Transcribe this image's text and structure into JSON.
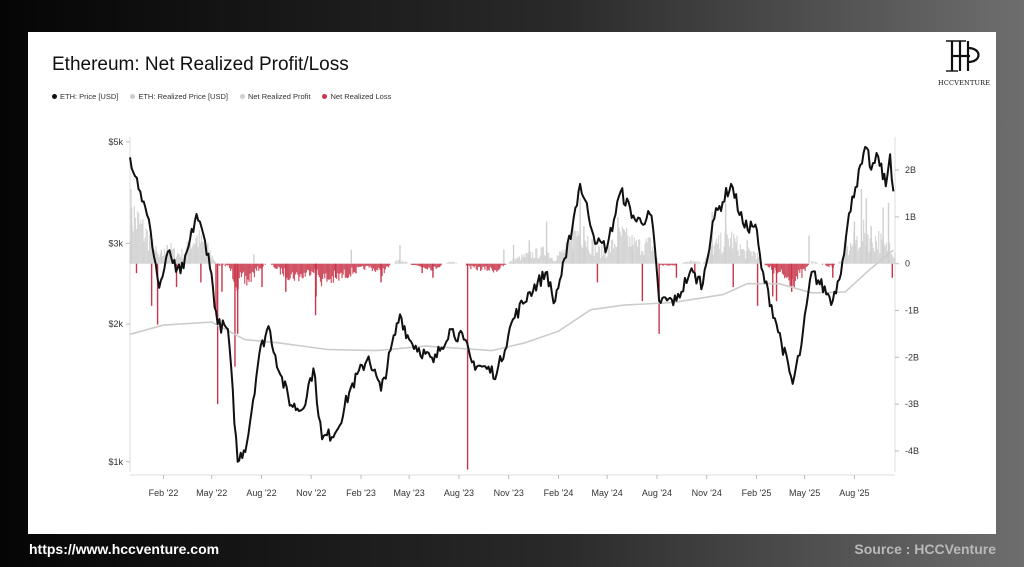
{
  "footer": {
    "url": "https://www.hccventure.com",
    "source": "Source : HCCVenture"
  },
  "logo": {
    "text": "HCCVENTURE",
    "icon": "hp-monogram-icon"
  },
  "chart_data": {
    "type": "line+bar",
    "title": "Ethereum: Net Realized Profit/Loss",
    "legend": [
      {
        "name": "ETH: Price [USD]",
        "color": "#111111"
      },
      {
        "name": "ETH: Realized Price [USD]",
        "color": "#cccccc"
      },
      {
        "name": "Net Realized Profit",
        "color": "#cfcfcf"
      },
      {
        "name": "Net Realized Loss",
        "color": "#c8364a"
      }
    ],
    "legend_position": "top-left",
    "grid": false,
    "x_range": [
      "2021-12-01",
      "2025-10-15"
    ],
    "x_ticks": [
      {
        "label": "Feb '22",
        "date": "2022-02-01"
      },
      {
        "label": "May '22",
        "date": "2022-05-01"
      },
      {
        "label": "Aug '22",
        "date": "2022-08-01"
      },
      {
        "label": "Nov '22",
        "date": "2022-11-01"
      },
      {
        "label": "Feb '23",
        "date": "2023-02-01"
      },
      {
        "label": "May '23",
        "date": "2023-05-01"
      },
      {
        "label": "Aug '23",
        "date": "2023-08-01"
      },
      {
        "label": "Nov '23",
        "date": "2023-11-01"
      },
      {
        "label": "Feb '24",
        "date": "2024-02-01"
      },
      {
        "label": "May '24",
        "date": "2024-05-01"
      },
      {
        "label": "Aug '24",
        "date": "2024-08-01"
      },
      {
        "label": "Nov '24",
        "date": "2024-11-01"
      },
      {
        "label": "Feb '25",
        "date": "2025-02-01"
      },
      {
        "label": "May '25",
        "date": "2025-05-01"
      },
      {
        "label": "Aug '25",
        "date": "2025-08-01"
      }
    ],
    "y_left": {
      "scale": "log",
      "range": [
        950,
        5000
      ],
      "ticks": [
        {
          "label": "$1k",
          "value": 1000
        },
        {
          "label": "$2k",
          "value": 2000
        },
        {
          "label": "$3k",
          "value": 3000
        },
        {
          "label": "$5k",
          "value": 5000
        }
      ]
    },
    "y_right": {
      "scale": "linear",
      "range_billions": [
        -4.45,
        2.6
      ],
      "ticks": [
        {
          "label": "2B",
          "value": 2
        },
        {
          "label": "1B",
          "value": 1
        },
        {
          "label": "0",
          "value": 0
        },
        {
          "label": "-1B",
          "value": -1
        },
        {
          "label": "-2B",
          "value": -2
        },
        {
          "label": "-3B",
          "value": -3
        },
        {
          "label": "-4B",
          "value": -4
        }
      ]
    },
    "price_series": {
      "name": "ETH: Price [USD]",
      "points": [
        [
          "2021-12-01",
          4630
        ],
        [
          "2021-12-20",
          3900
        ],
        [
          "2022-01-08",
          3200
        ],
        [
          "2022-01-24",
          2400
        ],
        [
          "2022-02-12",
          2900
        ],
        [
          "2022-02-24",
          2600
        ],
        [
          "2022-03-10",
          2650
        ],
        [
          "2022-04-03",
          3480
        ],
        [
          "2022-04-25",
          2850
        ],
        [
          "2022-05-12",
          2000
        ],
        [
          "2022-05-31",
          1950
        ],
        [
          "2022-06-18",
          1000
        ],
        [
          "2022-07-05",
          1100
        ],
        [
          "2022-07-28",
          1720
        ],
        [
          "2022-08-14",
          1980
        ],
        [
          "2022-09-05",
          1550
        ],
        [
          "2022-09-25",
          1330
        ],
        [
          "2022-10-15",
          1300
        ],
        [
          "2022-11-05",
          1600
        ],
        [
          "2022-11-21",
          1120
        ],
        [
          "2022-12-18",
          1170
        ],
        [
          "2023-01-13",
          1450
        ],
        [
          "2023-02-15",
          1700
        ],
        [
          "2023-03-10",
          1430
        ],
        [
          "2023-04-14",
          2100
        ],
        [
          "2023-05-01",
          1850
        ],
        [
          "2023-06-15",
          1650
        ],
        [
          "2023-07-15",
          1950
        ],
        [
          "2023-08-10",
          1850
        ],
        [
          "2023-08-25",
          1650
        ],
        [
          "2023-10-10",
          1560
        ],
        [
          "2023-11-09",
          2050
        ],
        [
          "2023-12-10",
          2350
        ],
        [
          "2024-01-11",
          2600
        ],
        [
          "2024-01-23",
          2220
        ],
        [
          "2024-02-15",
          2800
        ],
        [
          "2024-03-12",
          4050
        ],
        [
          "2024-04-12",
          3000
        ],
        [
          "2024-05-01",
          2950
        ],
        [
          "2024-05-26",
          3900
        ],
        [
          "2024-06-24",
          3350
        ],
        [
          "2024-07-22",
          3450
        ],
        [
          "2024-08-05",
          2250
        ],
        [
          "2024-09-06",
          2250
        ],
        [
          "2024-10-01",
          2600
        ],
        [
          "2024-10-25",
          2450
        ],
        [
          "2024-11-12",
          3350
        ],
        [
          "2024-12-16",
          4050
        ],
        [
          "2025-01-10",
          3250
        ],
        [
          "2025-01-30",
          3300
        ],
        [
          "2025-02-10",
          2650
        ],
        [
          "2025-03-10",
          2000
        ],
        [
          "2025-04-09",
          1480
        ],
        [
          "2025-04-25",
          1800
        ],
        [
          "2025-05-14",
          2600
        ],
        [
          "2025-06-22",
          2250
        ],
        [
          "2025-07-10",
          2750
        ],
        [
          "2025-07-28",
          3800
        ],
        [
          "2025-08-24",
          4850
        ],
        [
          "2025-09-01",
          4350
        ],
        [
          "2025-09-14",
          4650
        ],
        [
          "2025-09-28",
          4000
        ],
        [
          "2025-10-06",
          4700
        ],
        [
          "2025-10-12",
          3900
        ]
      ]
    },
    "realized_price_series": {
      "name": "ETH: Realized Price [USD]",
      "points": [
        [
          "2021-12-01",
          1900
        ],
        [
          "2022-02-01",
          1990
        ],
        [
          "2022-05-01",
          2020
        ],
        [
          "2022-07-01",
          1850
        ],
        [
          "2022-09-01",
          1820
        ],
        [
          "2022-12-01",
          1760
        ],
        [
          "2023-03-01",
          1750
        ],
        [
          "2023-06-01",
          1790
        ],
        [
          "2023-10-01",
          1750
        ],
        [
          "2023-12-01",
          1820
        ],
        [
          "2024-02-01",
          1930
        ],
        [
          "2024-04-01",
          2150
        ],
        [
          "2024-06-01",
          2200
        ],
        [
          "2024-09-01",
          2230
        ],
        [
          "2024-12-01",
          2320
        ],
        [
          "2025-01-15",
          2450
        ],
        [
          "2025-03-15",
          2450
        ],
        [
          "2025-05-15",
          2340
        ],
        [
          "2025-07-15",
          2350
        ],
        [
          "2025-09-01",
          2650
        ],
        [
          "2025-10-12",
          2900
        ]
      ]
    },
    "net_realized_bars": {
      "unit": "billions USD",
      "profit_name": "Net Realized Profit",
      "loss_name": "Net Realized Loss",
      "points": [
        [
          "2021-12-04",
          1.2
        ],
        [
          "2021-12-13",
          -0.2
        ],
        [
          "2022-01-10",
          -0.9
        ],
        [
          "2022-01-21",
          -1.3
        ],
        [
          "2022-01-28",
          0.3
        ],
        [
          "2022-02-08",
          0.4
        ],
        [
          "2022-02-25",
          -0.5
        ],
        [
          "2022-03-22",
          0.7
        ],
        [
          "2022-04-11",
          -0.4
        ],
        [
          "2022-05-09",
          -1.1
        ],
        [
          "2022-05-12",
          -3.0
        ],
        [
          "2022-05-20",
          -0.6
        ],
        [
          "2022-06-13",
          -2.2
        ],
        [
          "2022-06-18",
          -1.5
        ],
        [
          "2022-07-18",
          0.2
        ],
        [
          "2022-08-02",
          -0.5
        ],
        [
          "2022-09-15",
          -0.6
        ],
        [
          "2022-11-09",
          -1.1
        ],
        [
          "2022-11-10",
          -0.7
        ],
        [
          "2022-12-16",
          -0.3
        ],
        [
          "2023-01-14",
          0.3
        ],
        [
          "2023-03-10",
          -0.4
        ],
        [
          "2023-04-14",
          0.4
        ],
        [
          "2023-05-25",
          -0.2
        ],
        [
          "2023-06-14",
          -0.3
        ],
        [
          "2023-08-17",
          -4.4
        ],
        [
          "2023-10-23",
          0.3
        ],
        [
          "2023-11-10",
          0.4
        ],
        [
          "2023-12-09",
          0.5
        ],
        [
          "2024-01-10",
          0.9
        ],
        [
          "2024-02-28",
          1.0
        ],
        [
          "2024-03-12",
          1.4
        ],
        [
          "2024-03-19",
          0.8
        ],
        [
          "2024-04-13",
          -0.4
        ],
        [
          "2024-05-21",
          1.0
        ],
        [
          "2024-06-17",
          0.4
        ],
        [
          "2024-07-05",
          -0.8
        ],
        [
          "2024-08-05",
          -1.5
        ],
        [
          "2024-09-06",
          -0.3
        ],
        [
          "2024-10-10",
          -0.3
        ],
        [
          "2024-11-11",
          1.1
        ],
        [
          "2024-12-06",
          1.3
        ],
        [
          "2024-12-20",
          -0.5
        ],
        [
          "2025-01-15",
          0.5
        ],
        [
          "2025-02-03",
          -0.9
        ],
        [
          "2025-03-03",
          -0.7
        ],
        [
          "2025-03-10",
          -0.8
        ],
        [
          "2025-04-07",
          -0.6
        ],
        [
          "2025-05-09",
          0.6
        ],
        [
          "2025-06-22",
          -0.3
        ],
        [
          "2025-07-17",
          0.7
        ],
        [
          "2025-08-01",
          0.9
        ],
        [
          "2025-08-14",
          1.6
        ],
        [
          "2025-08-23",
          1.4
        ],
        [
          "2025-09-01",
          0.8
        ],
        [
          "2025-09-23",
          1.2
        ],
        [
          "2025-10-03",
          1.3
        ],
        [
          "2025-10-10",
          -0.3
        ]
      ]
    }
  }
}
